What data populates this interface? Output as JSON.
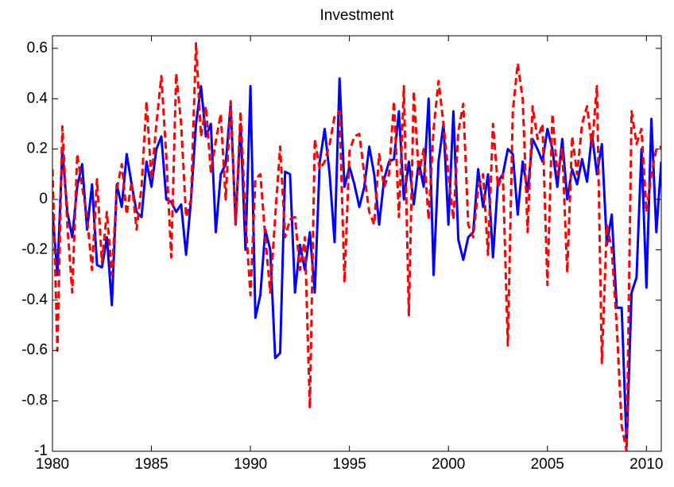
{
  "chart_data": {
    "type": "line",
    "title": "Investment",
    "x": [
      1980,
      1980.25,
      1980.5,
      1980.75,
      1981,
      1981.25,
      1981.5,
      1981.75,
      1982,
      1982.25,
      1982.5,
      1982.75,
      1983,
      1983.25,
      1983.5,
      1983.75,
      1984,
      1984.25,
      1984.5,
      1984.75,
      1985,
      1985.25,
      1985.5,
      1985.75,
      1986,
      1986.25,
      1986.5,
      1986.75,
      1987,
      1987.25,
      1987.5,
      1987.75,
      1988,
      1988.25,
      1988.5,
      1988.75,
      1989,
      1989.25,
      1989.5,
      1989.75,
      1990,
      1990.25,
      1990.5,
      1990.75,
      1991,
      1991.25,
      1991.5,
      1991.75,
      1992,
      1992.25,
      1992.5,
      1992.75,
      1993,
      1993.25,
      1993.5,
      1993.75,
      1994,
      1994.25,
      1994.5,
      1994.75,
      1995,
      1995.25,
      1995.5,
      1995.75,
      1996,
      1996.25,
      1996.5,
      1996.75,
      1997,
      1997.25,
      1997.5,
      1997.75,
      1998,
      1998.25,
      1998.5,
      1998.75,
      1999,
      1999.25,
      1999.5,
      1999.75,
      2000,
      2000.25,
      2000.5,
      2000.75,
      2001,
      2001.25,
      2001.5,
      2001.75,
      2002,
      2002.25,
      2002.5,
      2002.75,
      2003,
      2003.25,
      2003.5,
      2003.75,
      2004,
      2004.25,
      2004.5,
      2004.75,
      2005,
      2005.25,
      2005.5,
      2005.75,
      2006,
      2006.25,
      2006.5,
      2006.75,
      2007,
      2007.25,
      2007.5,
      2007.75,
      2008,
      2008.25,
      2008.5,
      2008.75,
      2009,
      2009.25,
      2009.5,
      2009.75,
      2010,
      2010.25,
      2010.5,
      2010.75
    ],
    "series": [
      {
        "color": "#0000ff",
        "dash": false,
        "values": [
          -0.05,
          -0.3,
          0.2,
          -0.05,
          -0.15,
          0.05,
          0.14,
          -0.12,
          0.06,
          -0.26,
          -0.27,
          -0.15,
          -0.42,
          0.06,
          -0.03,
          0.18,
          0.06,
          -0.05,
          -0.07,
          0.15,
          0.05,
          0.2,
          0.25,
          0.0,
          -0.01,
          -0.05,
          -0.02,
          -0.22,
          0.0,
          0.3,
          0.45,
          0.25,
          0.3,
          -0.13,
          0.1,
          0.14,
          0.38,
          -0.1,
          0.3,
          -0.2,
          0.45,
          -0.47,
          -0.38,
          -0.12,
          -0.2,
          -0.63,
          -0.61,
          0.11,
          0.1,
          -0.37,
          -0.18,
          -0.28,
          -0.13,
          -0.37,
          0.15,
          0.28,
          0.1,
          -0.17,
          0.48,
          0.05,
          0.13,
          0.06,
          -0.03,
          0.05,
          0.21,
          0.1,
          -0.1,
          0.08,
          0.15,
          0.16,
          0.35,
          0.0,
          0.15,
          -0.02,
          0.15,
          0.05,
          0.4,
          -0.3,
          0.15,
          0.3,
          -0.1,
          0.35,
          -0.16,
          -0.24,
          -0.15,
          -0.13,
          0.12,
          -0.03,
          0.1,
          -0.23,
          0.07,
          0.1,
          0.2,
          0.18,
          -0.06,
          0.15,
          0.03,
          0.24,
          0.2,
          0.15,
          0.28,
          0.2,
          0.05,
          0.24,
          0.0,
          0.12,
          0.06,
          0.16,
          0.07,
          0.26,
          0.1,
          0.22,
          -0.18,
          -0.06,
          -0.43,
          -0.43,
          -0.98,
          -0.37,
          -0.31,
          0.2,
          -0.35,
          0.32,
          -0.13,
          0.15
        ]
      },
      {
        "color": "#ff0000",
        "dash": true,
        "values": [
          0.12,
          -0.6,
          0.29,
          -0.1,
          -0.37,
          0.18,
          0.05,
          -0.07,
          -0.28,
          0.08,
          -0.25,
          -0.05,
          -0.3,
          0.04,
          0.14,
          -0.06,
          0.07,
          -0.12,
          0.05,
          0.39,
          0.08,
          0.3,
          0.49,
          0.17,
          -0.23,
          0.5,
          0.3,
          -0.07,
          0.0,
          0.62,
          0.25,
          0.37,
          0.11,
          0.23,
          0.34,
          0.0,
          0.39,
          -0.1,
          0.35,
          -0.08,
          -0.38,
          0.08,
          0.1,
          -0.15,
          -0.37,
          -0.07,
          0.21,
          -0.15,
          -0.08,
          -0.07,
          -0.28,
          -0.15,
          -0.83,
          0.24,
          0.12,
          0.15,
          0.22,
          0.33,
          0.35,
          -0.33,
          0.19,
          0.25,
          0.26,
          0.1,
          -0.05,
          -0.1,
          0.18,
          0.05,
          0.1,
          0.39,
          -0.07,
          0.45,
          -0.46,
          0.43,
          0.1,
          0.2,
          -0.08,
          0.28,
          0.47,
          0.3,
          0.1,
          -0.08,
          0.27,
          0.38,
          -0.1,
          -0.15,
          0.04,
          0.1,
          -0.22,
          0.3,
          0.05,
          0.1,
          -0.58,
          0.35,
          0.54,
          0.4,
          -0.13,
          0.37,
          0.24,
          0.3,
          -0.34,
          0.34,
          0.1,
          0.2,
          -0.29,
          0.25,
          0.1,
          0.3,
          0.37,
          0.21,
          0.45,
          -0.65,
          -0.1,
          -0.2,
          -0.5,
          -0.9,
          -1.0,
          0.35,
          0.22,
          0.28,
          -0.05,
          0.1,
          0.2,
          0.21
        ]
      }
    ],
    "xlim": [
      1980,
      2010.75
    ],
    "ylim": [
      -1,
      0.65
    ],
    "xticks": [
      1980,
      1985,
      1990,
      1995,
      2000,
      2005,
      2010
    ],
    "yticks": [
      -1,
      -0.8,
      -0.6,
      -0.4,
      -0.2,
      0,
      0.2,
      0.4,
      0.6
    ],
    "grid": false
  }
}
